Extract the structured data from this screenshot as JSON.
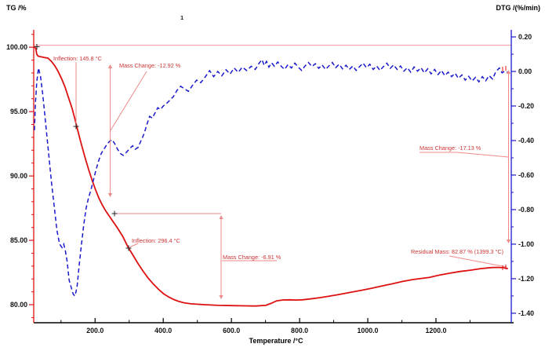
{
  "colors": {
    "tg_curve": "#dd1111",
    "dtg_curve": "#1a1acc",
    "annotation_text": "#cc3333",
    "annotation_line": "#ef8a8a",
    "left_axis": "#dd1111",
    "right_axis": "#1a1acc",
    "bottom_axis": "#000000",
    "reference_line": "#f09a9a",
    "marker": "#222222"
  },
  "chart_data": {
    "type": "line",
    "title": "",
    "curve_number": "1",
    "grid": false,
    "legend_position": "none",
    "x_axis": {
      "label": "Temperature /°C",
      "xlim": [
        20,
        1421
      ],
      "minor_step": 100,
      "ticks": [
        {
          "v": 200,
          "label": "200.0"
        },
        {
          "v": 400,
          "label": "400.0"
        },
        {
          "v": 600,
          "label": "600.0"
        },
        {
          "v": 800,
          "label": "800.0"
        },
        {
          "v": 1000,
          "label": "1000.0"
        },
        {
          "v": 1200,
          "label": "1200.0"
        }
      ]
    },
    "left_axis": {
      "label": "TG /%",
      "ylim": [
        78.6,
        101.35
      ],
      "minor_step": 1,
      "ticks": [
        {
          "v": 100,
          "label": "100.00"
        },
        {
          "v": 95,
          "label": "95.00"
        },
        {
          "v": 90,
          "label": "90.00"
        },
        {
          "v": 85,
          "label": "85.00"
        },
        {
          "v": 80,
          "label": "80.00"
        }
      ]
    },
    "right_axis": {
      "label": "DTG /(%/min)",
      "ylim": [
        -1.455,
        0.241
      ],
      "minor_step": 0.1,
      "ticks": [
        {
          "v": 0.2,
          "label": "0.20"
        },
        {
          "v": 0.0,
          "label": "0.00"
        },
        {
          "v": -0.2,
          "label": "-0.20"
        },
        {
          "v": -0.4,
          "label": "-0.40"
        },
        {
          "v": -0.6,
          "label": "-0.60"
        },
        {
          "v": -0.8,
          "label": "-0.80"
        },
        {
          "v": -1.0,
          "label": "-1.00"
        },
        {
          "v": -1.2,
          "label": "-1.20"
        },
        {
          "v": -1.4,
          "label": "-1.40"
        }
      ]
    },
    "reference_line": {
      "axis": "left",
      "value": 100
    },
    "annotations": [
      {
        "id": "inflection-1",
        "text": "Inflection: 145.8 °C"
      },
      {
        "id": "mass-change-1",
        "text": "Mass Change: -12.92 %"
      },
      {
        "id": "inflection-2",
        "text": "Inflection: 296.4 °C"
      },
      {
        "id": "mass-change-2",
        "text": "Mass Change: -6.91 %"
      },
      {
        "id": "mass-change-3",
        "text": "Mass Change: -17.13 %"
      },
      {
        "id": "residual-mass",
        "text": "Residual Mass: 82.87 % (1399.3 °C)"
      }
    ],
    "key_points": {
      "inflection_1_temp_c": 145.8,
      "inflection_2_temp_c": 296.4,
      "mass_change_1_pct": -12.92,
      "mass_change_2_pct": -6.91,
      "mass_change_3_pct": -17.13,
      "residual_mass_pct": 82.87,
      "residual_mass_temp_c": 1399.3
    },
    "series": [
      {
        "name": "TG",
        "axis": "left",
        "style": "solid",
        "points": [
          [
            22,
            100.05
          ],
          [
            26,
            99.9
          ],
          [
            29,
            99.45
          ],
          [
            33,
            99.3
          ],
          [
            42,
            99.25
          ],
          [
            52,
            99.2
          ],
          [
            62,
            99.15
          ],
          [
            72,
            98.9
          ],
          [
            82,
            98.55
          ],
          [
            92,
            98.1
          ],
          [
            102,
            97.55
          ],
          [
            112,
            96.9
          ],
          [
            122,
            96.1
          ],
          [
            132,
            95.3
          ],
          [
            140,
            94.5
          ],
          [
            145.8,
            93.9
          ],
          [
            154,
            93.05
          ],
          [
            162,
            92.25
          ],
          [
            171,
            91.4
          ],
          [
            181,
            90.5
          ],
          [
            191,
            89.7
          ],
          [
            201,
            88.95
          ],
          [
            211,
            88.3
          ],
          [
            221,
            87.75
          ],
          [
            231,
            87.3
          ],
          [
            241,
            86.9
          ],
          [
            253,
            86.45
          ],
          [
            266,
            85.95
          ],
          [
            281,
            85.3
          ],
          [
            296.4,
            84.5
          ],
          [
            311,
            83.85
          ],
          [
            326,
            83.2
          ],
          [
            341,
            82.6
          ],
          [
            356,
            82.05
          ],
          [
            371,
            81.6
          ],
          [
            386,
            81.2
          ],
          [
            401,
            80.85
          ],
          [
            416,
            80.6
          ],
          [
            431,
            80.4
          ],
          [
            446,
            80.25
          ],
          [
            461,
            80.15
          ],
          [
            481,
            80.07
          ],
          [
            521,
            80.0
          ],
          [
            561,
            79.95
          ],
          [
            601,
            79.93
          ],
          [
            641,
            79.91
          ],
          [
            671,
            79.9
          ],
          [
            701,
            79.95
          ],
          [
            716,
            80.1
          ],
          [
            733,
            80.3
          ],
          [
            751,
            80.37
          ],
          [
            771,
            80.38
          ],
          [
            791,
            80.36
          ],
          [
            808,
            80.38
          ],
          [
            831,
            80.45
          ],
          [
            861,
            80.55
          ],
          [
            891,
            80.68
          ],
          [
            921,
            80.82
          ],
          [
            951,
            80.97
          ],
          [
            981,
            81.12
          ],
          [
            1011,
            81.28
          ],
          [
            1041,
            81.45
          ],
          [
            1071,
            81.62
          ],
          [
            1101,
            81.8
          ],
          [
            1131,
            81.95
          ],
          [
            1161,
            82.05
          ],
          [
            1181,
            82.12
          ],
          [
            1211,
            82.3
          ],
          [
            1241,
            82.45
          ],
          [
            1271,
            82.58
          ],
          [
            1301,
            82.68
          ],
          [
            1331,
            82.8
          ],
          [
            1361,
            82.88
          ],
          [
            1381,
            82.9
          ],
          [
            1399.3,
            82.87
          ],
          [
            1411,
            82.8
          ]
        ]
      },
      {
        "name": "DTG",
        "axis": "right",
        "style": "dashed",
        "points": [
          [
            22,
            -0.34
          ],
          [
            25,
            -0.18
          ],
          [
            29,
            -0.06
          ],
          [
            34,
            0.02
          ],
          [
            40,
            -0.03
          ],
          [
            47,
            -0.14
          ],
          [
            55,
            -0.3
          ],
          [
            63,
            -0.46
          ],
          [
            72,
            -0.64
          ],
          [
            80,
            -0.78
          ],
          [
            88,
            -0.92
          ],
          [
            96,
            -1.0
          ],
          [
            103,
            -1.02
          ],
          [
            108,
            -1.0
          ],
          [
            113,
            -1.04
          ],
          [
            118,
            -1.1
          ],
          [
            124,
            -1.21
          ],
          [
            130,
            -1.25
          ],
          [
            136,
            -1.29
          ],
          [
            141,
            -1.3
          ],
          [
            147,
            -1.25
          ],
          [
            153,
            -1.13
          ],
          [
            160,
            -1.0
          ],
          [
            167,
            -0.885
          ],
          [
            174,
            -0.79
          ],
          [
            181,
            -0.73
          ],
          [
            188,
            -0.685
          ],
          [
            195,
            -0.63
          ],
          [
            202,
            -0.575
          ],
          [
            210,
            -0.52
          ],
          [
            218,
            -0.475
          ],
          [
            226,
            -0.45
          ],
          [
            234,
            -0.425
          ],
          [
            242,
            -0.405
          ],
          [
            250,
            -0.395
          ],
          [
            258,
            -0.42
          ],
          [
            266,
            -0.45
          ],
          [
            274,
            -0.475
          ],
          [
            283,
            -0.486
          ],
          [
            291,
            -0.47
          ],
          [
            300,
            -0.45
          ],
          [
            310,
            -0.43
          ],
          [
            318,
            -0.45
          ],
          [
            326,
            -0.44
          ],
          [
            335,
            -0.4
          ],
          [
            344,
            -0.36
          ],
          [
            353,
            -0.3
          ],
          [
            360,
            -0.26
          ],
          [
            368,
            -0.27
          ],
          [
            376,
            -0.24
          ],
          [
            384,
            -0.21
          ],
          [
            392,
            -0.22
          ],
          [
            400,
            -0.2
          ],
          [
            410,
            -0.185
          ],
          [
            420,
            -0.165
          ],
          [
            430,
            -0.145
          ],
          [
            440,
            -0.11
          ],
          [
            451,
            -0.086
          ],
          [
            462,
            -0.1
          ],
          [
            474,
            -0.115
          ],
          [
            486,
            -0.08
          ],
          [
            498,
            -0.05
          ],
          [
            510,
            -0.065
          ],
          [
            522,
            -0.035
          ],
          [
            536,
            0.005
          ],
          [
            548,
            -0.03
          ],
          [
            560,
            0.0
          ],
          [
            572,
            -0.025
          ],
          [
            584,
            0.01
          ],
          [
            596,
            -0.015
          ],
          [
            608,
            0.02
          ],
          [
            620,
            -0.005
          ],
          [
            632,
            0.025
          ],
          [
            645,
            0.005
          ],
          [
            658,
            0.03
          ],
          [
            670,
            0.012
          ],
          [
            682,
            0.05
          ],
          [
            690,
            0.068
          ],
          [
            696,
            0.035
          ],
          [
            703,
            0.058
          ],
          [
            710,
            0.025
          ],
          [
            718,
            0.05
          ],
          [
            726,
            0.03
          ],
          [
            736,
            0.055
          ],
          [
            746,
            0.03
          ],
          [
            756,
            0.012
          ],
          [
            766,
            0.04
          ],
          [
            776,
            0.02
          ],
          [
            786,
            0.048
          ],
          [
            796,
            0.025
          ],
          [
            806,
            0.006
          ],
          [
            816,
            0.032
          ],
          [
            826,
            0.052
          ],
          [
            836,
            0.028
          ],
          [
            846,
            0.045
          ],
          [
            856,
            0.018
          ],
          [
            866,
            0.038
          ],
          [
            876,
            0.012
          ],
          [
            886,
            0.032
          ],
          [
            896,
            0.052
          ],
          [
            906,
            0.022
          ],
          [
            916,
            0.042
          ],
          [
            926,
            0.015
          ],
          [
            936,
            0.036
          ],
          [
            946,
            0.012
          ],
          [
            956,
            0.032
          ],
          [
            966,
            0.006
          ],
          [
            976,
            0.028
          ],
          [
            986,
            0.048
          ],
          [
            996,
            0.022
          ],
          [
            1006,
            0.042
          ],
          [
            1016,
            0.012
          ],
          [
            1026,
            0.032
          ],
          [
            1036,
            0.006
          ],
          [
            1046,
            0.028
          ],
          [
            1056,
            0.048
          ],
          [
            1066,
            0.018
          ],
          [
            1076,
            0.038
          ],
          [
            1086,
            0.012
          ],
          [
            1096,
            0.032
          ],
          [
            1106,
            0.002
          ],
          [
            1116,
            0.022
          ],
          [
            1126,
            -0.004
          ],
          [
            1136,
            0.026
          ],
          [
            1146,
            0.002
          ],
          [
            1156,
            0.022
          ],
          [
            1166,
            -0.008
          ],
          [
            1176,
            0.016
          ],
          [
            1186,
            -0.014
          ],
          [
            1196,
            0.012
          ],
          [
            1206,
            -0.018
          ],
          [
            1216,
            0.006
          ],
          [
            1226,
            -0.024
          ],
          [
            1236,
            -0.004
          ],
          [
            1246,
            -0.03
          ],
          [
            1256,
            -0.01
          ],
          [
            1266,
            -0.04
          ],
          [
            1276,
            -0.02
          ],
          [
            1286,
            -0.05
          ],
          [
            1296,
            -0.028
          ],
          [
            1306,
            -0.055
          ],
          [
            1316,
            -0.034
          ],
          [
            1326,
            -0.06
          ],
          [
            1336,
            -0.03
          ],
          [
            1346,
            -0.054
          ],
          [
            1356,
            -0.024
          ],
          [
            1366,
            -0.044
          ],
          [
            1376,
            0.0
          ],
          [
            1386,
            0.02
          ],
          [
            1394,
            -0.008
          ],
          [
            1402,
            0.002
          ],
          [
            1410,
            -0.004
          ]
        ]
      }
    ]
  }
}
